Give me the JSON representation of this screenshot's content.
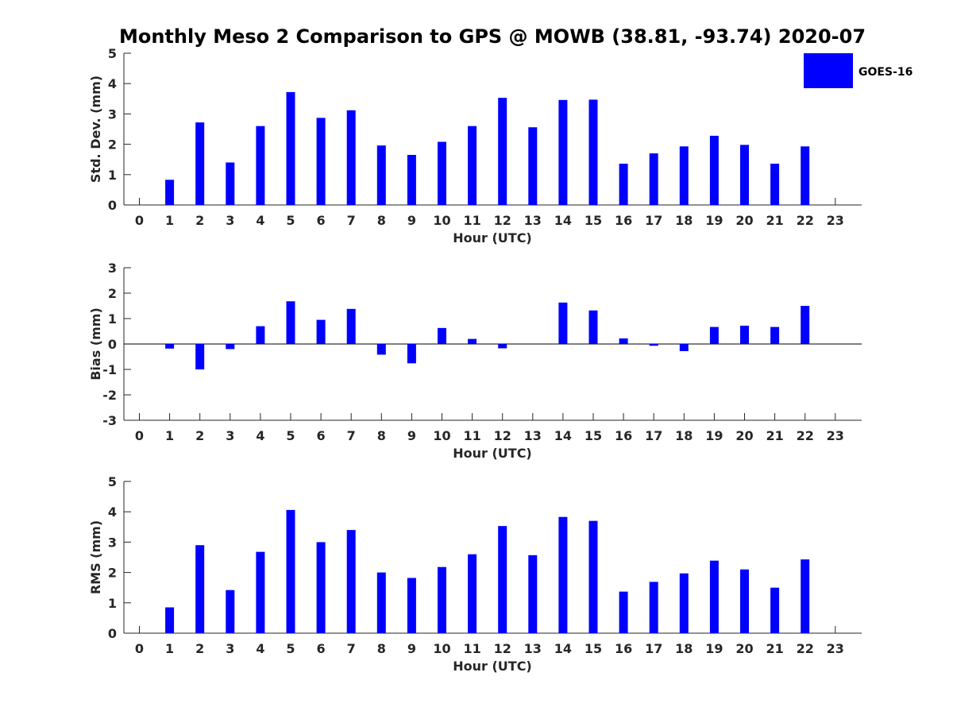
{
  "title": "Monthly Meso 2 Comparison to GPS @ MOWB (38.81, -93.74) 2020-07",
  "legend": {
    "label": "GOES-16",
    "color": "#0000ff",
    "placement": "top-right"
  },
  "chart_data": [
    {
      "type": "bar",
      "xlabel": "Hour (UTC)",
      "ylabel": "Std. Dev. (mm)",
      "categories": [
        "0",
        "1",
        "2",
        "3",
        "4",
        "5",
        "6",
        "7",
        "8",
        "9",
        "10",
        "11",
        "12",
        "13",
        "14",
        "15",
        "16",
        "17",
        "18",
        "19",
        "20",
        "21",
        "22",
        "23"
      ],
      "ylim": [
        0,
        5
      ],
      "yticks": [
        "0",
        "1",
        "2",
        "3",
        "4",
        "5"
      ],
      "series": [
        {
          "name": "GOES-16",
          "values": [
            null,
            0.83,
            2.72,
            1.4,
            2.6,
            3.72,
            2.87,
            3.12,
            1.96,
            1.65,
            2.08,
            2.6,
            3.53,
            2.56,
            3.46,
            3.47,
            1.36,
            1.7,
            1.93,
            2.28,
            1.98,
            1.36,
            1.93,
            null
          ]
        }
      ]
    },
    {
      "type": "bar",
      "xlabel": "Hour (UTC)",
      "ylabel": "Bias (mm)",
      "categories": [
        "0",
        "1",
        "2",
        "3",
        "4",
        "5",
        "6",
        "7",
        "8",
        "9",
        "10",
        "11",
        "12",
        "13",
        "14",
        "15",
        "16",
        "17",
        "18",
        "19",
        "20",
        "21",
        "22",
        "23"
      ],
      "ylim": [
        -3,
        3
      ],
      "yticks": [
        "-3",
        "-2",
        "-1",
        "0",
        "1",
        "2",
        "3"
      ],
      "series": [
        {
          "name": "GOES-16",
          "values": [
            null,
            -0.18,
            -1.0,
            -0.2,
            0.7,
            1.68,
            0.95,
            1.38,
            -0.42,
            -0.76,
            0.63,
            0.2,
            -0.17,
            null,
            1.63,
            1.32,
            0.22,
            -0.07,
            -0.28,
            0.67,
            0.72,
            0.67,
            1.5,
            null
          ]
        }
      ]
    },
    {
      "type": "bar",
      "xlabel": "Hour (UTC)",
      "ylabel": "RMS (mm)",
      "categories": [
        "0",
        "1",
        "2",
        "3",
        "4",
        "5",
        "6",
        "7",
        "8",
        "9",
        "10",
        "11",
        "12",
        "13",
        "14",
        "15",
        "16",
        "17",
        "18",
        "19",
        "20",
        "21",
        "22",
        "23"
      ],
      "ylim": [
        0,
        5
      ],
      "yticks": [
        "0",
        "1",
        "2",
        "3",
        "4",
        "5"
      ],
      "series": [
        {
          "name": "GOES-16",
          "values": [
            null,
            0.85,
            2.9,
            1.42,
            2.68,
            4.06,
            3.0,
            3.4,
            2.0,
            1.82,
            2.18,
            2.6,
            3.53,
            2.57,
            3.83,
            3.7,
            1.37,
            1.69,
            1.97,
            2.39,
            2.1,
            1.5,
            2.43,
            null
          ]
        }
      ]
    }
  ]
}
